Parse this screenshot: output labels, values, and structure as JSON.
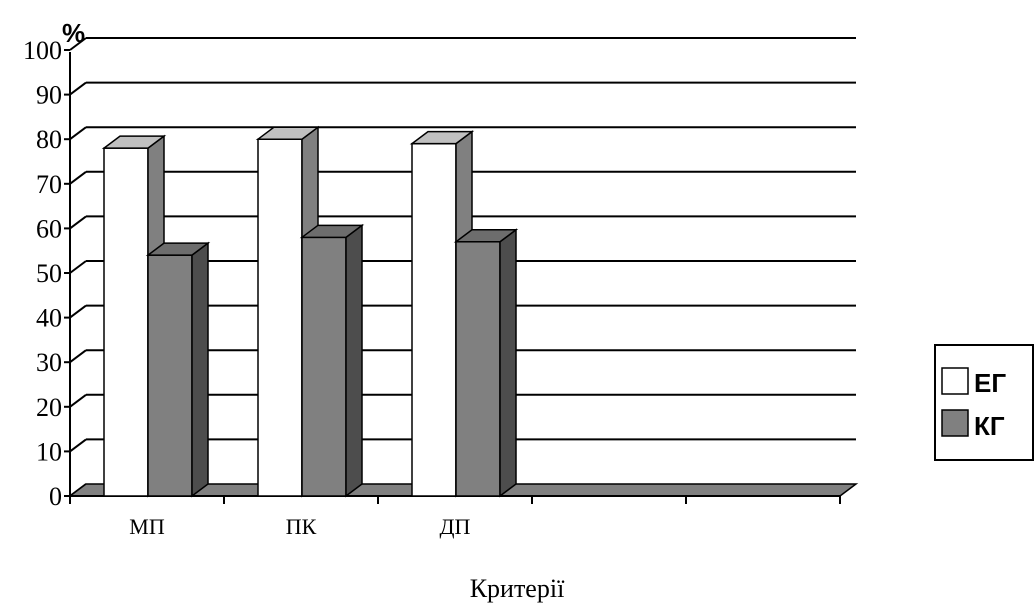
{
  "chart_data": {
    "type": "bar",
    "unit_label": "%",
    "xlabel": "Критерії",
    "ylabel": "",
    "categories": [
      "МП",
      "ПК",
      "ДП",
      "",
      ""
    ],
    "ylim": [
      0,
      100
    ],
    "yticks": [
      0,
      10,
      20,
      30,
      40,
      50,
      60,
      70,
      80,
      90,
      100
    ],
    "grid": true,
    "legend_position": "right",
    "series": [
      {
        "name": "ЕГ",
        "values": [
          78,
          80,
          79,
          null,
          null
        ],
        "color": "#ffffff"
      },
      {
        "name": "КГ",
        "values": [
          54,
          58,
          57,
          null,
          null
        ],
        "color": "#808080"
      }
    ]
  }
}
